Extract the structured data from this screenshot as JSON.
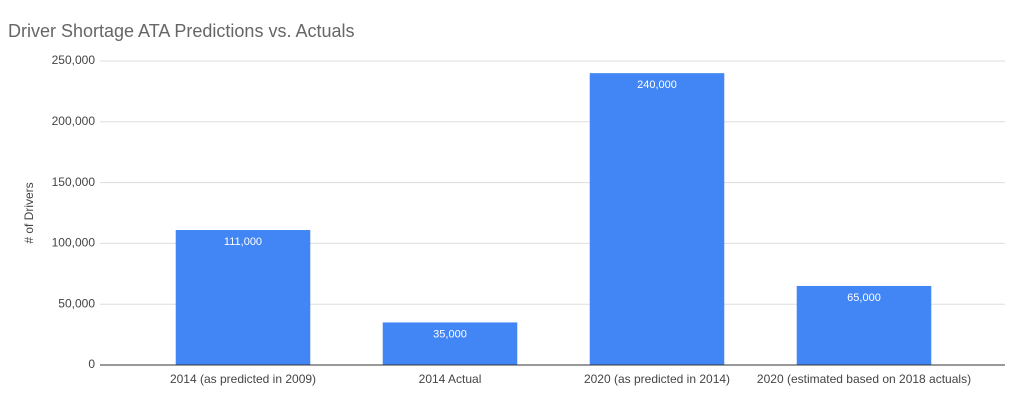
{
  "chart_data": {
    "type": "bar",
    "title": "Driver Shortage ATA Predictions vs. Actuals",
    "ylabel": "# of Drivers",
    "categories": [
      "2014 (as predicted in 2009)",
      "2014 Actual",
      "2020 (as predicted in 2014)",
      "2020 (estimated based on 2018 actuals)"
    ],
    "values": [
      111000,
      35000,
      240000,
      65000
    ],
    "value_labels": [
      "111,000",
      "35,000",
      "240,000",
      "65,000"
    ],
    "color": "#4285f4",
    "ylim": [
      0,
      250000
    ],
    "yticks": [
      0,
      {
        "value": 50000,
        "label": "50,000"
      },
      {
        "value": 100000,
        "label": "100,000"
      },
      {
        "value": 150000,
        "label": "150,000"
      },
      {
        "value": 200000,
        "label": "200,000"
      },
      {
        "value": 250000,
        "label": "250,000"
      }
    ],
    "grid": true
  }
}
